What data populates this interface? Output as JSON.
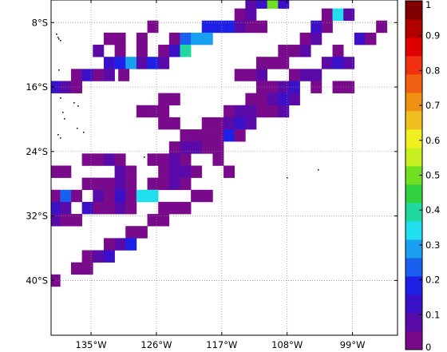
{
  "map": {
    "extent": {
      "lon_min": -140.5,
      "lon_max": -92.8,
      "lat_min": -46.8,
      "lat_max": -5.2
    },
    "cell_size_deg": 1.5,
    "lat_ticks": [
      {
        "value": -8,
        "label": "8°S"
      },
      {
        "value": -16,
        "label": "16°S"
      },
      {
        "value": -24,
        "label": "24°S"
      },
      {
        "value": -32,
        "label": "32°S"
      },
      {
        "value": -40,
        "label": "40°S"
      }
    ],
    "lon_ticks": [
      {
        "value": -135,
        "label": "135°W"
      },
      {
        "value": -126,
        "label": "126°W"
      },
      {
        "value": -117,
        "label": "117°W"
      },
      {
        "value": -108,
        "label": "108°W"
      },
      {
        "value": -99,
        "label": "99°W"
      }
    ],
    "grid": "dotted",
    "colorbar": {
      "min": 0,
      "max": 1,
      "tick_labels": [
        "0",
        "0.1",
        "0.2",
        "0.3",
        "0.4",
        "0.5",
        "0.6",
        "0.7",
        "0.8",
        "0.9",
        "1"
      ],
      "colors": [
        "#7a0a8c",
        "#5a0aa8",
        "#3a10c8",
        "#1e20e8",
        "#1a60f0",
        "#1aa0f0",
        "#20e0f0",
        "#20d8a0",
        "#30d040",
        "#70e020",
        "#c8f020",
        "#f0f020",
        "#f0c020",
        "#f09010",
        "#f06010",
        "#f03010",
        "#e00000",
        "#b00000",
        "#800000"
      ]
    },
    "cells": [
      [
        -113,
        -5.5,
        0.1
      ],
      [
        -111.5,
        -5.5,
        0.15
      ],
      [
        -110,
        -5.5,
        0.5
      ],
      [
        -108.5,
        -5.5,
        0.15
      ],
      [
        -114.5,
        -7,
        0.05
      ],
      [
        -113,
        -7,
        0.1
      ],
      [
        -102.5,
        -7,
        0.05
      ],
      [
        -101,
        -7,
        0.35
      ],
      [
        -99.5,
        -7,
        0.1
      ],
      [
        -126.5,
        -8.5,
        0.0
      ],
      [
        -119,
        -8.5,
        0.2
      ],
      [
        -117.5,
        -8.5,
        0.2
      ],
      [
        -116,
        -8.5,
        0.2
      ],
      [
        -114.5,
        -8.5,
        0.1
      ],
      [
        -113,
        -8.5,
        0.05
      ],
      [
        -111.5,
        -8.5,
        0.05
      ],
      [
        -104,
        -8.5,
        0.15
      ],
      [
        -102.5,
        -8.5,
        0.05
      ],
      [
        -95,
        -8.5,
        0.0
      ],
      [
        -132.5,
        -10,
        0.05
      ],
      [
        -131,
        -10,
        0.05
      ],
      [
        -128,
        -10,
        0.0
      ],
      [
        -123.5,
        -10,
        0.05
      ],
      [
        -122,
        -10,
        0.25
      ],
      [
        -120.5,
        -10,
        0.3
      ],
      [
        -119,
        -10,
        0.3
      ],
      [
        -105.5,
        -10,
        0.05
      ],
      [
        -104,
        -10,
        0.1
      ],
      [
        -98,
        -10,
        0.15
      ],
      [
        -96.5,
        -10,
        0.0
      ],
      [
        -134,
        -11.5,
        0.1
      ],
      [
        -131,
        -11.5,
        0.05
      ],
      [
        -128,
        -11.5,
        0.05
      ],
      [
        -125,
        -11.5,
        0.05
      ],
      [
        -123.5,
        -11.5,
        0.15
      ],
      [
        -122,
        -11.5,
        0.4
      ],
      [
        -108.5,
        -11.5,
        0.05
      ],
      [
        -107,
        -11.5,
        0.05
      ],
      [
        -105.5,
        -11.5,
        0.1
      ],
      [
        -101,
        -11.5,
        0.05
      ],
      [
        -132.5,
        -13,
        0.15
      ],
      [
        -131,
        -13,
        0.2
      ],
      [
        -129.5,
        -13,
        0.3
      ],
      [
        -128,
        -13,
        0.1
      ],
      [
        -126.5,
        -13,
        0.2
      ],
      [
        -125,
        -13,
        0.1
      ],
      [
        -111.5,
        -13,
        0.05
      ],
      [
        -110,
        -13,
        0.05
      ],
      [
        -108.5,
        -13,
        0.05
      ],
      [
        -102.5,
        -13,
        0.1
      ],
      [
        -101,
        -13,
        0.15
      ],
      [
        -99.5,
        -13,
        0.1
      ],
      [
        -137,
        -14.5,
        0.05
      ],
      [
        -135.5,
        -14.5,
        0.15
      ],
      [
        -134,
        -14.5,
        0.05
      ],
      [
        -132.5,
        -14.5,
        0.1
      ],
      [
        -130.5,
        -14.5,
        0.05
      ],
      [
        -114.5,
        -14.5,
        0.05
      ],
      [
        -113,
        -14.5,
        0.05
      ],
      [
        -111.5,
        -14.5,
        0.1
      ],
      [
        -107,
        -14.5,
        0.05
      ],
      [
        -105.5,
        -14.5,
        0.1
      ],
      [
        -104,
        -14.5,
        0.1
      ],
      [
        -140,
        -16,
        0.15
      ],
      [
        -138.5,
        -16,
        0.1
      ],
      [
        -137,
        -16,
        0.05
      ],
      [
        -111.5,
        -16,
        0.05
      ],
      [
        -110,
        -16,
        0.05
      ],
      [
        -108.5,
        -16,
        0.1
      ],
      [
        -107,
        -16,
        0.15
      ],
      [
        -104,
        -16,
        0.05
      ],
      [
        -101,
        -16,
        0.05
      ],
      [
        -99.5,
        -16,
        0.05
      ],
      [
        -125,
        -17.5,
        0.0
      ],
      [
        -123.5,
        -17.5,
        0.0
      ],
      [
        -113,
        -17.5,
        0.05
      ],
      [
        -111.5,
        -17.5,
        0.05
      ],
      [
        -110,
        -17.5,
        0.1
      ],
      [
        -108.5,
        -17.5,
        0.15
      ],
      [
        -107,
        -17.5,
        0.1
      ],
      [
        -128,
        -19,
        0.0
      ],
      [
        -126.5,
        -19,
        0.0
      ],
      [
        -125,
        -19,
        0.05
      ],
      [
        -116,
        -19,
        0.05
      ],
      [
        -114.5,
        -19,
        0.1
      ],
      [
        -113,
        -19,
        0.1
      ],
      [
        -111.5,
        -19,
        0.05
      ],
      [
        -110,
        -19,
        0.05
      ],
      [
        -108.5,
        -19,
        0.1
      ],
      [
        -125,
        -20.5,
        0.0
      ],
      [
        -123.5,
        -20.5,
        0.0
      ],
      [
        -119,
        -20.5,
        0.05
      ],
      [
        -117.5,
        -20.5,
        0.05
      ],
      [
        -116,
        -20.5,
        0.1
      ],
      [
        -114.5,
        -20.5,
        0.15
      ],
      [
        -113,
        -20.5,
        0.1
      ],
      [
        -122,
        -22,
        0.05
      ],
      [
        -120.5,
        -22,
        0.05
      ],
      [
        -119,
        -22,
        0.05
      ],
      [
        -117.5,
        -22,
        0.05
      ],
      [
        -116,
        -22,
        0.2
      ],
      [
        -114.5,
        -22,
        0.05
      ],
      [
        -123.5,
        -23.5,
        0.05
      ],
      [
        -122,
        -23.5,
        0.1
      ],
      [
        -120.5,
        -23.5,
        0.1
      ],
      [
        -119,
        -23.5,
        0.05
      ],
      [
        -117.5,
        -23.5,
        0.05
      ],
      [
        -135.5,
        -25,
        0.05
      ],
      [
        -134,
        -25,
        0.05
      ],
      [
        -132.5,
        -25,
        0.1
      ],
      [
        -131,
        -25,
        0.05
      ],
      [
        -126.5,
        -25,
        0.05
      ],
      [
        -125,
        -25,
        0.05
      ],
      [
        -123.5,
        -25,
        0.1
      ],
      [
        -122,
        -25,
        0.05
      ],
      [
        -117.5,
        -25,
        0.05
      ],
      [
        -140,
        -26.5,
        0.05
      ],
      [
        -138.5,
        -26.5,
        0.05
      ],
      [
        -131,
        -26.5,
        0.1
      ],
      [
        -129.5,
        -26.5,
        0.05
      ],
      [
        -125,
        -26.5,
        0.05
      ],
      [
        -123.5,
        -26.5,
        0.1
      ],
      [
        -122,
        -26.5,
        0.1
      ],
      [
        -120.5,
        -26.5,
        0.05
      ],
      [
        -116,
        -26.5,
        0.05
      ],
      [
        -135.5,
        -28,
        0.05
      ],
      [
        -134,
        -28,
        0.05
      ],
      [
        -132.5,
        -28,
        0.05
      ],
      [
        -131,
        -28,
        0.1
      ],
      [
        -129.5,
        -28,
        0.05
      ],
      [
        -126.5,
        -28,
        0.05
      ],
      [
        -125,
        -28,
        0.05
      ],
      [
        -123.5,
        -28,
        0.1
      ],
      [
        -122,
        -28,
        0.05
      ],
      [
        -140,
        -29.5,
        0.05
      ],
      [
        -138.5,
        -29.5,
        0.25
      ],
      [
        -137,
        -29.5,
        0.05
      ],
      [
        -134,
        -29.5,
        0.1
      ],
      [
        -132.5,
        -29.5,
        0.05
      ],
      [
        -131,
        -29.5,
        0.15
      ],
      [
        -129.5,
        -29.5,
        0.05
      ],
      [
        -128,
        -29.5,
        0.35
      ],
      [
        -126.5,
        -29.5,
        0.35
      ],
      [
        -120.5,
        -29.5,
        0.05
      ],
      [
        -119,
        -29.5,
        0.05
      ],
      [
        -140,
        -31,
        0.15
      ],
      [
        -138.5,
        -31,
        0.1
      ],
      [
        -135.5,
        -31,
        0.15
      ],
      [
        -134,
        -31,
        0.05
      ],
      [
        -132.5,
        -31,
        0.05
      ],
      [
        -131,
        -31,
        0.1
      ],
      [
        -129.5,
        -31,
        0.05
      ],
      [
        -125,
        -31,
        0.05
      ],
      [
        -123.5,
        -31,
        0.05
      ],
      [
        -122,
        -31,
        0.05
      ],
      [
        -140,
        -32.5,
        0.1
      ],
      [
        -138.5,
        -32.5,
        0.05
      ],
      [
        -137,
        -32.5,
        0.05
      ],
      [
        -126.5,
        -32.5,
        0.05
      ],
      [
        -125,
        -32.5,
        0.05
      ],
      [
        -129.5,
        -34,
        0.05
      ],
      [
        -128,
        -34,
        0.05
      ],
      [
        -132.5,
        -35.5,
        0.05
      ],
      [
        -131,
        -35.5,
        0.1
      ],
      [
        -129.5,
        -35.5,
        0.2
      ],
      [
        -135.5,
        -37,
        0.05
      ],
      [
        -134,
        -37,
        0.1
      ],
      [
        -132.5,
        -37,
        0.15
      ],
      [
        -137,
        -38.5,
        0.05
      ],
      [
        -135.5,
        -38.5,
        0.05
      ],
      [
        -140,
        -40,
        0.05
      ]
    ]
  }
}
